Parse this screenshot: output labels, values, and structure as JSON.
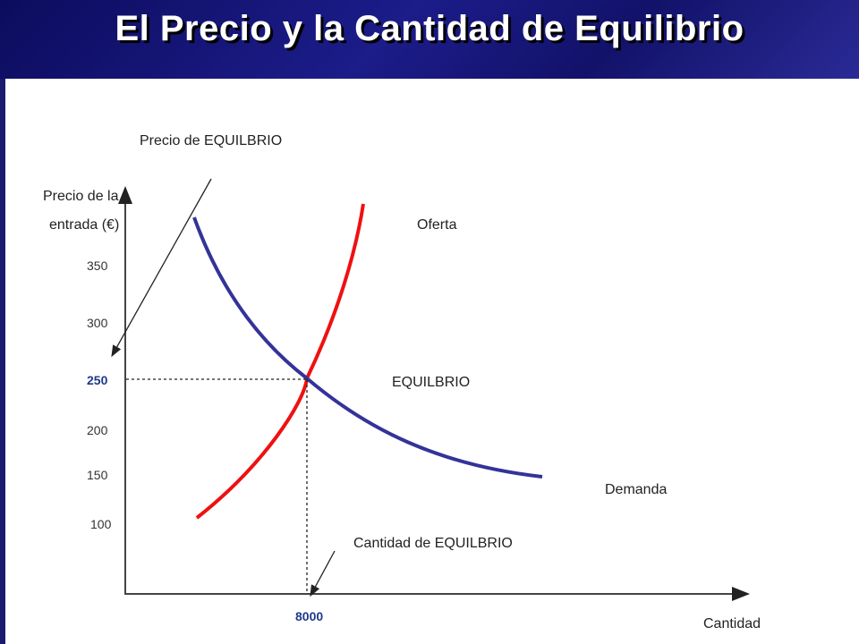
{
  "title": "El Precio y la Cantidad de Equilibrio",
  "colors": {
    "header_bg": "#1a1a6e",
    "supply": "#ee1111",
    "demand": "#333399",
    "highlight_tick": "#1f3a8a"
  },
  "chart_data": {
    "type": "line",
    "ylabel_line1": "Precio de la",
    "ylabel_line2": "entrada (€)",
    "xlabel": "Cantidad",
    "y_ticks": [
      "350",
      "300",
      "250",
      "200",
      "150",
      "100"
    ],
    "x_ticks": [
      "8000"
    ],
    "highlight_y_tick": "250",
    "highlight_x_tick": "8000",
    "series": [
      {
        "name": "Oferta",
        "color": "#ee1111"
      },
      {
        "name": "Demanda",
        "color": "#333399"
      }
    ],
    "equilibrium": {
      "label": "EQUILBRIO",
      "price": 250,
      "quantity": 8000
    },
    "annotations": {
      "price_eq": "Precio  de EQUILBRIO",
      "qty_eq": "Cantidad de EQUILBRIO"
    },
    "grid": false
  }
}
